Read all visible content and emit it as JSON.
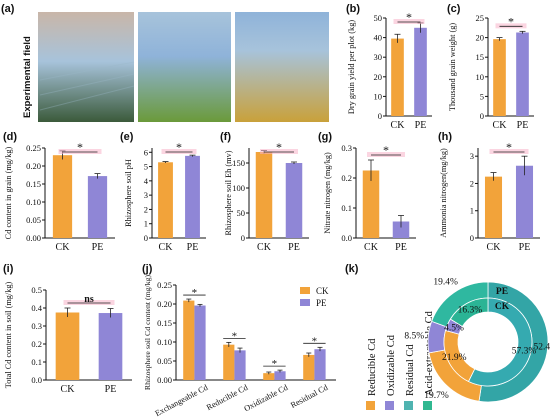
{
  "photo": {
    "side_label": "Experimental field",
    "colors": {
      "sky1": "#c9b6a8",
      "sky2": "#a7c3db",
      "sky3": "#8fb3d9",
      "field1": "#3b5a3a",
      "field2": "#6b9a3a",
      "field3": "#c9a13a"
    }
  },
  "colors": {
    "ck": "#f2a33a",
    "pe": "#8f86d6",
    "ck_text": "#e0001b",
    "pe_text": "#3b3bb0",
    "highlight": "#f7b3c8"
  },
  "chart_data": [
    {
      "id": "b",
      "panel_label": "(b)",
      "type": "bar",
      "categories": [
        "CK",
        "PE"
      ],
      "values": [
        39.5,
        45
      ],
      "errors": [
        2.2,
        2.5
      ],
      "ylabel": "Dry grain yield per plot (kg)",
      "ylim": [
        0,
        50
      ],
      "yticks": [
        "0",
        "10",
        "20",
        "30",
        "40",
        "50"
      ],
      "tick_values": [
        0,
        10,
        20,
        30,
        40,
        50
      ],
      "annotation": "*"
    },
    {
      "id": "c",
      "panel_label": "(c)",
      "type": "bar",
      "categories": [
        "CK",
        "PE"
      ],
      "values": [
        19.6,
        21.3
      ],
      "errors": [
        0.4,
        0.3
      ],
      "ylabel": "Thousand grain weight (g)",
      "ylim": [
        0,
        25
      ],
      "yticks": [
        "0",
        "5",
        "10",
        "15",
        "20",
        "25"
      ],
      "tick_values": [
        0,
        5,
        10,
        15,
        20,
        25
      ],
      "annotation": "*"
    },
    {
      "id": "d",
      "panel_label": "(d)",
      "type": "bar",
      "categories": [
        "CK",
        "PE"
      ],
      "values": [
        0.23,
        0.172
      ],
      "errors": [
        0.012,
        0.007
      ],
      "ylabel": "Cd content in grain  (mg/kg)",
      "ylim": [
        0,
        0.25
      ],
      "yticks": [
        "0.00",
        "0.05",
        "0.10",
        "0.15",
        "0.20",
        "0.25"
      ],
      "tick_values": [
        0,
        0.05,
        0.1,
        0.15,
        0.2,
        0.25
      ],
      "annotation": "*"
    },
    {
      "id": "e",
      "panel_label": "(e)",
      "type": "bar",
      "categories": [
        "CK",
        "PE"
      ],
      "values": [
        5.3,
        5.75
      ],
      "errors": [
        0.05,
        0.05
      ],
      "ylabel": "Rhizosphere soil pH",
      "ylim": [
        0,
        6.3
      ],
      "yticks": [
        "0",
        "1",
        "2",
        "3",
        "4",
        "5",
        "6"
      ],
      "tick_values": [
        0,
        1,
        2,
        3,
        4,
        5,
        6
      ],
      "annotation": "*"
    },
    {
      "id": "f",
      "panel_label": "(f)",
      "type": "bar",
      "categories": [
        "CK",
        "PE"
      ],
      "values": [
        172,
        150
      ],
      "errors": [
        3,
        2
      ],
      "ylabel": "Rhizosphere soil Eh (mv)",
      "ylim": [
        0,
        180
      ],
      "yticks": [
        "0",
        "50",
        "100",
        "150"
      ],
      "tick_values": [
        0,
        50,
        100,
        150
      ],
      "annotation": "*"
    },
    {
      "id": "g",
      "panel_label": "(g)",
      "type": "bar",
      "categories": [
        "CK",
        "PE"
      ],
      "values": [
        0.225,
        0.055
      ],
      "errors": [
        0.035,
        0.02
      ],
      "ylabel": "Nitrate nitrogen (mg/kg)",
      "ylim": [
        0,
        0.3
      ],
      "yticks": [
        "0.0",
        "0.1",
        "0.2",
        "0.3"
      ],
      "tick_values": [
        0,
        0.1,
        0.2,
        0.3
      ],
      "annotation": "*"
    },
    {
      "id": "h",
      "panel_label": "(h)",
      "type": "bar",
      "categories": [
        "CK",
        "PE"
      ],
      "values": [
        2.25,
        2.65
      ],
      "errors": [
        0.15,
        0.35
      ],
      "ylabel": "Ammonia nitrogen(mg/kg)",
      "ylim": [
        0,
        3.3
      ],
      "yticks": [
        "0",
        "1",
        "2",
        "3"
      ],
      "tick_values": [
        0,
        1,
        2,
        3
      ],
      "annotation": "*"
    },
    {
      "id": "i",
      "panel_label": "(i)",
      "type": "bar",
      "categories": [
        "CK",
        "PE"
      ],
      "values": [
        0.375,
        0.372
      ],
      "errors": [
        0.025,
        0.025
      ],
      "ylabel": "Total Cd content in soil (mg/kg)",
      "ylim": [
        0,
        0.5
      ],
      "yticks": [
        "0.0",
        "0.1",
        "0.2",
        "0.3",
        "0.4",
        "0.5"
      ],
      "tick_values": [
        0,
        0.1,
        0.2,
        0.3,
        0.4,
        0.5
      ],
      "annotation": "ns"
    },
    {
      "id": "j",
      "panel_label": "(j)",
      "type": "bar",
      "categories": [
        "Exchangeable Cd",
        "Reducible  Cd",
        "Oxidizable  Cd",
        "Residual  Cd"
      ],
      "series": [
        {
          "name": "CK",
          "values": [
            0.209,
            0.093,
            0.018,
            0.066
          ],
          "errors": [
            0.004,
            0.006,
            0.003,
            0.005
          ]
        },
        {
          "name": "PE",
          "values": [
            0.196,
            0.078,
            0.023,
            0.081
          ],
          "errors": [
            0.003,
            0.006,
            0.003,
            0.005
          ]
        }
      ],
      "ylabel": "Rhizosphere soil Cd content (mg/kg)",
      "ylim": [
        0,
        0.25
      ],
      "yticks": [
        "0.00",
        "0.05",
        "0.10",
        "0.15",
        "0.20",
        "0.25"
      ],
      "tick_values": [
        0,
        0.05,
        0.1,
        0.15,
        0.2,
        0.25
      ],
      "annotations": [
        "*",
        "*",
        "*",
        "*"
      ],
      "legend": "top-right"
    },
    {
      "id": "k",
      "panel_label": "(k)",
      "type": "pie",
      "legend": [
        "Reducible Cd",
        "Oxidizable Cd",
        "Residual Cd",
        "Acid-extractable Cd"
      ],
      "legend_colors": [
        "#f2a33a",
        "#8f86d6",
        "#4fb3b0",
        "#30b890"
      ],
      "rings": [
        {
          "name": "PE",
          "slices": [
            {
              "label": "Acid-extractable Cd",
              "value": 52.4,
              "color": "#33a5a6"
            },
            {
              "label": "Reducible Cd",
              "value": 19.7,
              "color": "#f2a33a"
            },
            {
              "label": "Oxidizable Cd",
              "value": 8.5,
              "color": "#8f86d6"
            },
            {
              "label": "Residual Cd",
              "value": 19.4,
              "color": "#2fb8a0"
            }
          ]
        },
        {
          "name": "CK",
          "slices": [
            {
              "label": "Acid-extractable Cd",
              "value": 57.3,
              "color": "#35aab0"
            },
            {
              "label": "Reducible Cd",
              "value": 21.9,
              "color": "#f2a33a"
            },
            {
              "label": "Oxidizable Cd",
              "value": 4.5,
              "color": "#8f86d6"
            },
            {
              "label": "Residual Cd",
              "value": 16.3,
              "color": "#2bb495"
            }
          ]
        }
      ],
      "labels_outer": [
        "52.4%",
        "19.7%",
        "8.5%",
        "19.4%"
      ],
      "labels_inner": [
        "57.3%",
        "21.9%",
        "4.5%",
        "16.3%"
      ]
    }
  ]
}
